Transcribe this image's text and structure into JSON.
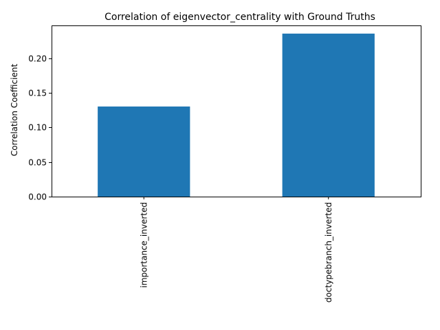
{
  "chart_data": {
    "type": "bar",
    "title": "Correlation of eigenvector_centrality with Ground Truths",
    "xlabel": "",
    "ylabel": "Correlation Coefficient",
    "categories": [
      "importance_inverted",
      "doctypebranch_inverted"
    ],
    "values": [
      0.1303,
      0.2357
    ],
    "ylim": [
      0,
      0.2475
    ],
    "yticks": [
      0.0,
      0.05,
      0.1,
      0.15,
      0.2
    ],
    "ytick_labels": [
      "0.00",
      "0.05",
      "0.10",
      "0.15",
      "0.20"
    ],
    "grid": false,
    "bar_color": "#1f77b4"
  }
}
